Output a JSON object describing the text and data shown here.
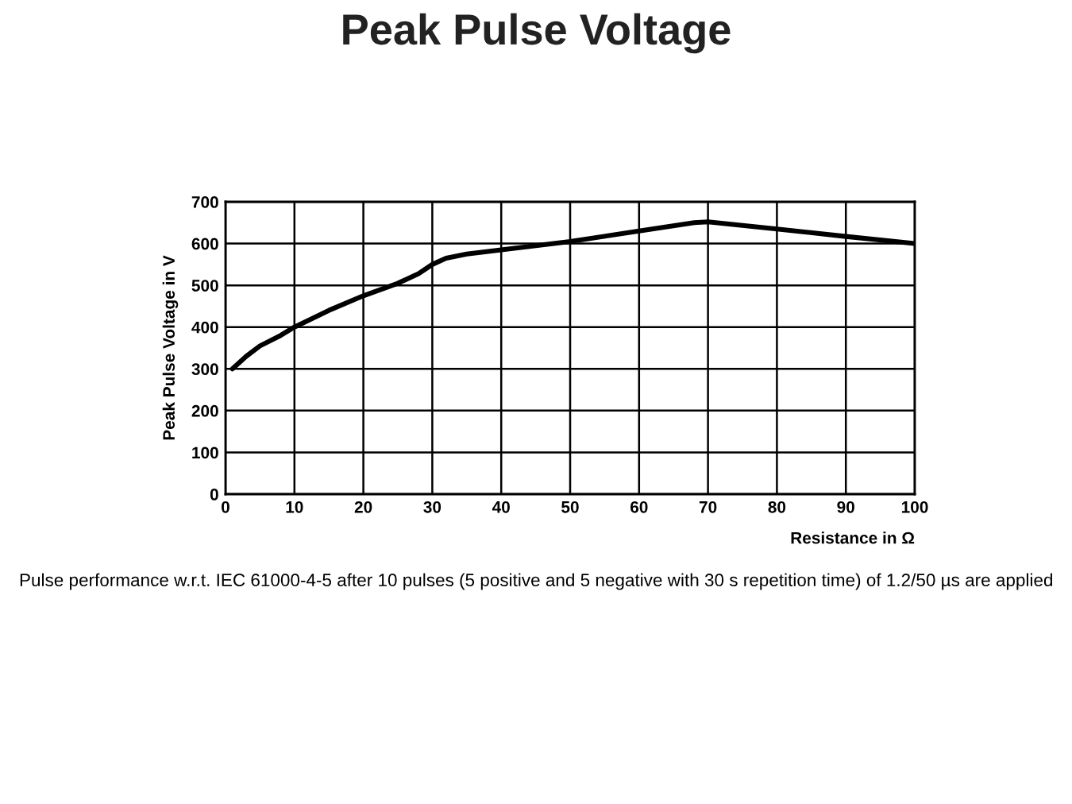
{
  "chart_data": {
    "type": "line",
    "title": "Peak Pulse Voltage",
    "xlabel": "Resistance in Ω",
    "ylabel": "Peak Pulse Voltage in V",
    "annotations": [
      "Pulse performance w.r.t. IEC 61000-4-5 after 10 pulses (5 positive and 5 negative with 30 s repetition time) of 1.2/50 µs are applied"
    ],
    "x": [
      1,
      3,
      5,
      8,
      10,
      15,
      20,
      25,
      28,
      30,
      32,
      35,
      40,
      45,
      50,
      60,
      68,
      70,
      80,
      90,
      100
    ],
    "series": [
      {
        "color": "#000000",
        "values": [
          300,
          330,
          355,
          380,
          400,
          440,
          475,
          505,
          528,
          550,
          565,
          575,
          585,
          595,
          605,
          630,
          650,
          652,
          635,
          617,
          600
        ]
      }
    ],
    "xlim": [
      0,
      100
    ],
    "ylim": [
      0,
      700
    ],
    "xticks": [
      0,
      10,
      20,
      30,
      40,
      50,
      60,
      70,
      80,
      90,
      100
    ],
    "yticks": [
      0,
      100,
      200,
      300,
      400,
      500,
      600,
      700
    ],
    "grid": true,
    "marker": "none",
    "line_style": "solid"
  }
}
